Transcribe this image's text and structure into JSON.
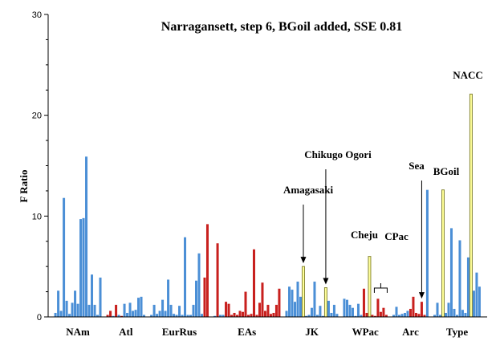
{
  "chart_data": {
    "type": "bar",
    "title": "Narragansett, step 6, BGoil added, SSE 0.81",
    "ylabel": "F Ratio",
    "xlabel": "",
    "ylim": [
      0,
      30
    ],
    "yticks": [
      "0",
      "10",
      "20",
      "30"
    ],
    "grid": false,
    "legend": "none",
    "colors": {
      "blue": "#4b8fd6",
      "red": "#c8201e",
      "yellow": "#ffff99",
      "yellow_edge": "#8a8a3a",
      "axis": "#000000"
    },
    "groups": [
      {
        "name": "NAm",
        "bars": [
          {
            "v": 0.4,
            "c": "blue"
          },
          {
            "v": 2.6,
            "c": "blue"
          },
          {
            "v": 0.6,
            "c": "blue"
          },
          {
            "v": 11.8,
            "c": "blue"
          },
          {
            "v": 1.6,
            "c": "blue"
          },
          {
            "v": 0.3,
            "c": "blue"
          },
          {
            "v": 1.4,
            "c": "blue"
          },
          {
            "v": 2.6,
            "c": "blue"
          },
          {
            "v": 1.3,
            "c": "blue"
          },
          {
            "v": 9.7,
            "c": "blue"
          },
          {
            "v": 9.8,
            "c": "blue"
          },
          {
            "v": 15.9,
            "c": "blue"
          },
          {
            "v": 1.2,
            "c": "blue"
          },
          {
            "v": 4.2,
            "c": "blue"
          },
          {
            "v": 1.2,
            "c": "blue"
          },
          {
            "v": 0.2,
            "c": "blue"
          },
          {
            "v": 3.9,
            "c": "blue"
          }
        ]
      },
      {
        "name": "Atl",
        "bars": [
          {
            "v": 0.2,
            "c": "red"
          },
          {
            "v": 0.6,
            "c": "red"
          },
          {
            "v": 0.1,
            "c": "blue"
          },
          {
            "v": 1.2,
            "c": "red"
          },
          {
            "v": 0.2,
            "c": "blue"
          },
          {
            "v": 0.1,
            "c": "red"
          },
          {
            "v": 1.3,
            "c": "blue"
          },
          {
            "v": 0.4,
            "c": "blue"
          },
          {
            "v": 1.4,
            "c": "blue"
          },
          {
            "v": 0.6,
            "c": "blue"
          },
          {
            "v": 0.7,
            "c": "blue"
          },
          {
            "v": 1.9,
            "c": "blue"
          },
          {
            "v": 2.0,
            "c": "blue"
          },
          {
            "v": 0.2,
            "c": "blue"
          }
        ]
      },
      {
        "name": "EurRus",
        "bars": [
          {
            "v": 0.2,
            "c": "blue"
          },
          {
            "v": 1.2,
            "c": "blue"
          },
          {
            "v": 0.3,
            "c": "blue"
          },
          {
            "v": 0.6,
            "c": "blue"
          },
          {
            "v": 1.7,
            "c": "blue"
          },
          {
            "v": 0.6,
            "c": "blue"
          },
          {
            "v": 3.7,
            "c": "blue"
          },
          {
            "v": 1.2,
            "c": "blue"
          },
          {
            "v": 0.3,
            "c": "blue"
          },
          {
            "v": 0.2,
            "c": "blue"
          },
          {
            "v": 1.1,
            "c": "blue"
          },
          {
            "v": 0.2,
            "c": "blue"
          },
          {
            "v": 7.9,
            "c": "blue"
          },
          {
            "v": 0.2,
            "c": "blue"
          },
          {
            "v": 0.2,
            "c": "blue"
          },
          {
            "v": 1.2,
            "c": "blue"
          },
          {
            "v": 3.6,
            "c": "blue"
          },
          {
            "v": 6.3,
            "c": "blue"
          },
          {
            "v": 0.3,
            "c": "blue"
          },
          {
            "v": 3.9,
            "c": "red"
          },
          {
            "v": 9.2,
            "c": "red"
          }
        ]
      },
      {
        "name": "EAs",
        "bars": [
          {
            "v": 0.1,
            "c": "blue"
          },
          {
            "v": 7.3,
            "c": "red"
          },
          {
            "v": 0.2,
            "c": "blue"
          },
          {
            "v": 0.2,
            "c": "blue"
          },
          {
            "v": 1.5,
            "c": "red"
          },
          {
            "v": 1.3,
            "c": "red"
          },
          {
            "v": 0.2,
            "c": "red"
          },
          {
            "v": 0.4,
            "c": "red"
          },
          {
            "v": 0.2,
            "c": "red"
          },
          {
            "v": 0.6,
            "c": "red"
          },
          {
            "v": 0.5,
            "c": "red"
          },
          {
            "v": 2.5,
            "c": "red"
          },
          {
            "v": 0.2,
            "c": "red"
          },
          {
            "v": 0.3,
            "c": "red"
          },
          {
            "v": 6.7,
            "c": "red"
          },
          {
            "v": 0.2,
            "c": "red"
          },
          {
            "v": 1.4,
            "c": "red"
          },
          {
            "v": 3.4,
            "c": "red"
          },
          {
            "v": 0.6,
            "c": "red"
          },
          {
            "v": 1.2,
            "c": "red"
          },
          {
            "v": 0.3,
            "c": "red"
          },
          {
            "v": 0.4,
            "c": "red"
          },
          {
            "v": 1.2,
            "c": "red"
          },
          {
            "v": 2.8,
            "c": "red"
          }
        ]
      },
      {
        "name": "JK",
        "bars": [
          {
            "v": 0.6,
            "c": "blue"
          },
          {
            "v": 3.0,
            "c": "blue"
          },
          {
            "v": 2.7,
            "c": "blue"
          },
          {
            "v": 1.5,
            "c": "blue"
          },
          {
            "v": 3.5,
            "c": "blue"
          },
          {
            "v": 2.0,
            "c": "blue"
          },
          {
            "v": 5.0,
            "c": "yellow"
          },
          {
            "v": 0.1,
            "c": "blue"
          },
          {
            "v": 0.2,
            "c": "blue"
          },
          {
            "v": 0.9,
            "c": "blue"
          },
          {
            "v": 3.5,
            "c": "blue"
          },
          {
            "v": 0.2,
            "c": "blue"
          },
          {
            "v": 1.1,
            "c": "blue"
          },
          {
            "v": 0.1,
            "c": "blue"
          },
          {
            "v": 2.9,
            "c": "yellow"
          },
          {
            "v": 1.6,
            "c": "blue"
          },
          {
            "v": 0.4,
            "c": "blue"
          },
          {
            "v": 1.2,
            "c": "blue"
          },
          {
            "v": 0.3,
            "c": "blue"
          }
        ]
      },
      {
        "name": "WPac",
        "bars": [
          {
            "v": 1.8,
            "c": "blue"
          },
          {
            "v": 1.7,
            "c": "blue"
          },
          {
            "v": 1.2,
            "c": "blue"
          },
          {
            "v": 0.9,
            "c": "blue"
          },
          {
            "v": 0.1,
            "c": "blue"
          },
          {
            "v": 1.3,
            "c": "blue"
          },
          {
            "v": 0.2,
            "c": "blue"
          },
          {
            "v": 2.8,
            "c": "red"
          },
          {
            "v": 0.4,
            "c": "red"
          },
          {
            "v": 6.0,
            "c": "yellow"
          },
          {
            "v": 0.2,
            "c": "red"
          },
          {
            "v": 0.1,
            "c": "red"
          },
          {
            "v": 1.8,
            "c": "red"
          },
          {
            "v": 0.5,
            "c": "red"
          },
          {
            "v": 0.9,
            "c": "red"
          },
          {
            "v": 0.2,
            "c": "red"
          }
        ]
      },
      {
        "name": "Arc",
        "bars": [
          {
            "v": 0.2,
            "c": "blue"
          },
          {
            "v": 1.0,
            "c": "blue"
          },
          {
            "v": 0.2,
            "c": "blue"
          },
          {
            "v": 0.3,
            "c": "blue"
          },
          {
            "v": 0.4,
            "c": "blue"
          },
          {
            "v": 0.6,
            "c": "blue"
          },
          {
            "v": 0.8,
            "c": "red"
          },
          {
            "v": 2.0,
            "c": "red"
          },
          {
            "v": 0.4,
            "c": "red"
          },
          {
            "v": 0.3,
            "c": "red"
          },
          {
            "v": 1.5,
            "c": "red"
          },
          {
            "v": 0.2,
            "c": "red"
          },
          {
            "v": 12.6,
            "c": "blue"
          }
        ]
      },
      {
        "name": "Type",
        "bars": [
          {
            "v": 0.2,
            "c": "blue"
          },
          {
            "v": 1.4,
            "c": "blue"
          },
          {
            "v": 0.2,
            "c": "blue"
          },
          {
            "v": 12.6,
            "c": "yellow"
          },
          {
            "v": 0.4,
            "c": "blue"
          },
          {
            "v": 1.4,
            "c": "blue"
          },
          {
            "v": 8.8,
            "c": "blue"
          },
          {
            "v": 0.8,
            "c": "blue"
          },
          {
            "v": 0.2,
            "c": "blue"
          },
          {
            "v": 7.6,
            "c": "blue"
          },
          {
            "v": 0.7,
            "c": "blue"
          },
          {
            "v": 0.4,
            "c": "blue"
          },
          {
            "v": 5.9,
            "c": "blue"
          },
          {
            "v": 22.1,
            "c": "yellow"
          },
          {
            "v": 2.6,
            "c": "blue"
          },
          {
            "v": 4.4,
            "c": "blue"
          },
          {
            "v": 3.0,
            "c": "blue"
          }
        ]
      }
    ],
    "annotations": [
      {
        "text": "Amagasaki",
        "arrow_to": {
          "group": "JK",
          "bar": 6
        }
      },
      {
        "text": "Chikugo Ogori",
        "arrow_to": {
          "group": "JK",
          "bar": 14
        }
      },
      {
        "text": "Cheju",
        "arrow_to": null
      },
      {
        "text": "CPac",
        "arrow_to": {
          "group": "WPac",
          "bar": 13
        }
      },
      {
        "text": "Sea",
        "arrow_to": {
          "group": "Arc",
          "bar": 10
        }
      },
      {
        "text": "BGoil",
        "arrow_to": null
      },
      {
        "text": "NACC",
        "arrow_to": null
      }
    ]
  }
}
